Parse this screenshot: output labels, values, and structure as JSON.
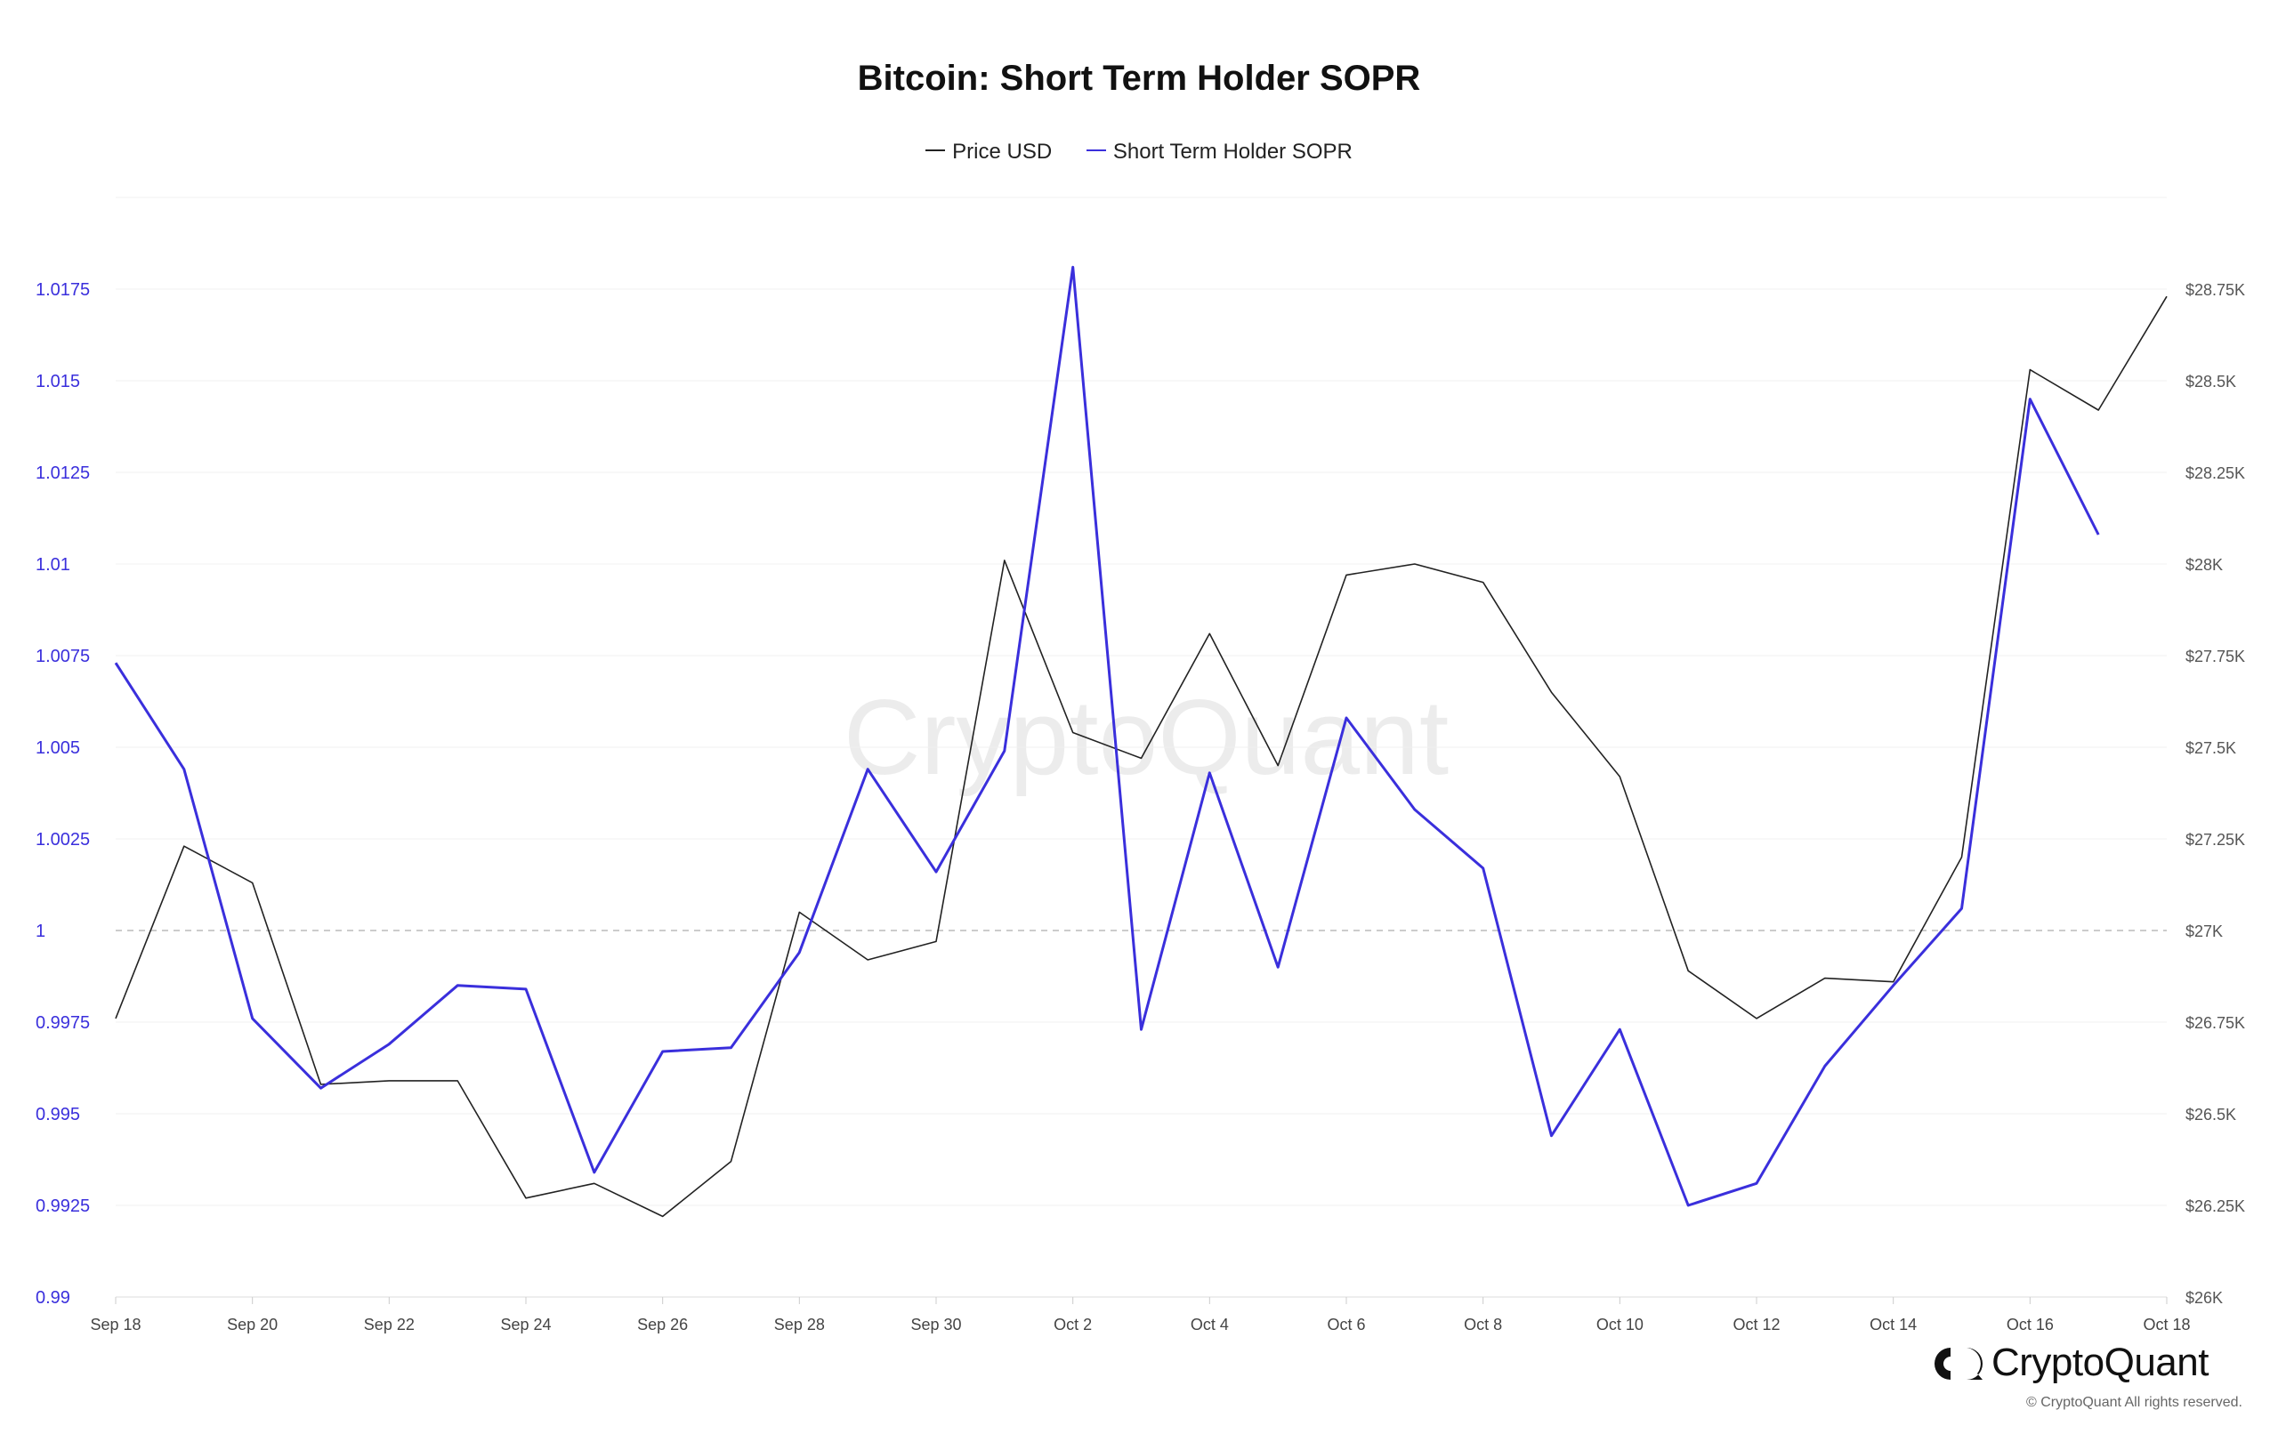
{
  "chart_data": {
    "type": "line",
    "title": "Bitcoin: Short Term Holder SOPR",
    "legend": [
      "Price USD",
      "Short Term Holder SOPR"
    ],
    "legend_position": "top-center",
    "x": [
      "Sep 18",
      "Sep 19",
      "Sep 20",
      "Sep 21",
      "Sep 22",
      "Sep 23",
      "Sep 24",
      "Sep 25",
      "Sep 26",
      "Sep 27",
      "Sep 28",
      "Sep 29",
      "Sep 30",
      "Oct 1",
      "Oct 2",
      "Oct 3",
      "Oct 4",
      "Oct 5",
      "Oct 6",
      "Oct 7",
      "Oct 8",
      "Oct 9",
      "Oct 10",
      "Oct 11",
      "Oct 12",
      "Oct 13",
      "Oct 14",
      "Oct 15",
      "Oct 16",
      "Oct 17",
      "Oct 18"
    ],
    "x_tick_labels": [
      "Sep 18",
      "Sep 20",
      "Sep 22",
      "Sep 24",
      "Sep 26",
      "Sep 28",
      "Sep 30",
      "Oct 2",
      "Oct 4",
      "Oct 6",
      "Oct 8",
      "Oct 10",
      "Oct 12",
      "Oct 14",
      "Oct 16",
      "Oct 18"
    ],
    "y_left": {
      "ylim": [
        0.99,
        1.02
      ],
      "tick_values": [
        0.99,
        0.9925,
        0.995,
        0.9975,
        1,
        1.0025,
        1.005,
        1.0075,
        1.01,
        1.0125,
        1.015,
        1.0175
      ],
      "tick_labels": [
        "0.99",
        "0.9925",
        "0.995",
        "0.9975",
        "1",
        "1.0025",
        "1.005",
        "1.0075",
        "1.01",
        "1.0125",
        "1.015",
        "1.0175"
      ],
      "color": "#3a2fdc"
    },
    "y_right": {
      "ylim": [
        26000,
        29000
      ],
      "tick_values": [
        26000,
        26250,
        26500,
        26750,
        27000,
        27250,
        27500,
        27750,
        28000,
        28250,
        28500,
        28750
      ],
      "tick_labels": [
        "$26K",
        "$26.25K",
        "$26.5K",
        "$26.75K",
        "$27K",
        "$27.25K",
        "$27.5K",
        "$27.75K",
        "$28K",
        "$28.25K",
        "$28.5K",
        "$28.75K"
      ]
    },
    "reference_line": {
      "axis": "left",
      "value": 1,
      "style": "dashed"
    },
    "series": [
      {
        "name": "Price USD",
        "axis": "right",
        "color": "#222222",
        "values": [
          26760,
          27230,
          27130,
          26580,
          26590,
          26590,
          26270,
          26310,
          26220,
          26370,
          27050,
          26920,
          26970,
          28010,
          27540,
          27470,
          27810,
          27450,
          27970,
          28000,
          27950,
          27650,
          27420,
          26890,
          26760,
          26870,
          26860,
          27200,
          28530,
          28420,
          28730
        ]
      },
      {
        "name": "Short Term Holder SOPR",
        "axis": "left",
        "color": "#3a2fdc",
        "values": [
          1.0073,
          1.0044,
          0.9976,
          0.9957,
          0.9969,
          0.9985,
          0.9984,
          0.9934,
          0.9967,
          0.9968,
          0.9994,
          1.0044,
          1.0016,
          1.0049,
          1.0181,
          0.9973,
          1.0043,
          0.999,
          1.0058,
          1.0033,
          1.0017,
          0.9944,
          0.9973,
          0.9925,
          0.9931,
          0.9963,
          0.9985,
          1.0006,
          1.0145,
          1.0108,
          null
        ]
      }
    ],
    "grid": true
  },
  "watermark": "CryptoQuant",
  "brand": {
    "name": "CryptoQuant",
    "icon": "cryptoquant-logo-icon",
    "copyright": "© CryptoQuant All rights reserved."
  }
}
